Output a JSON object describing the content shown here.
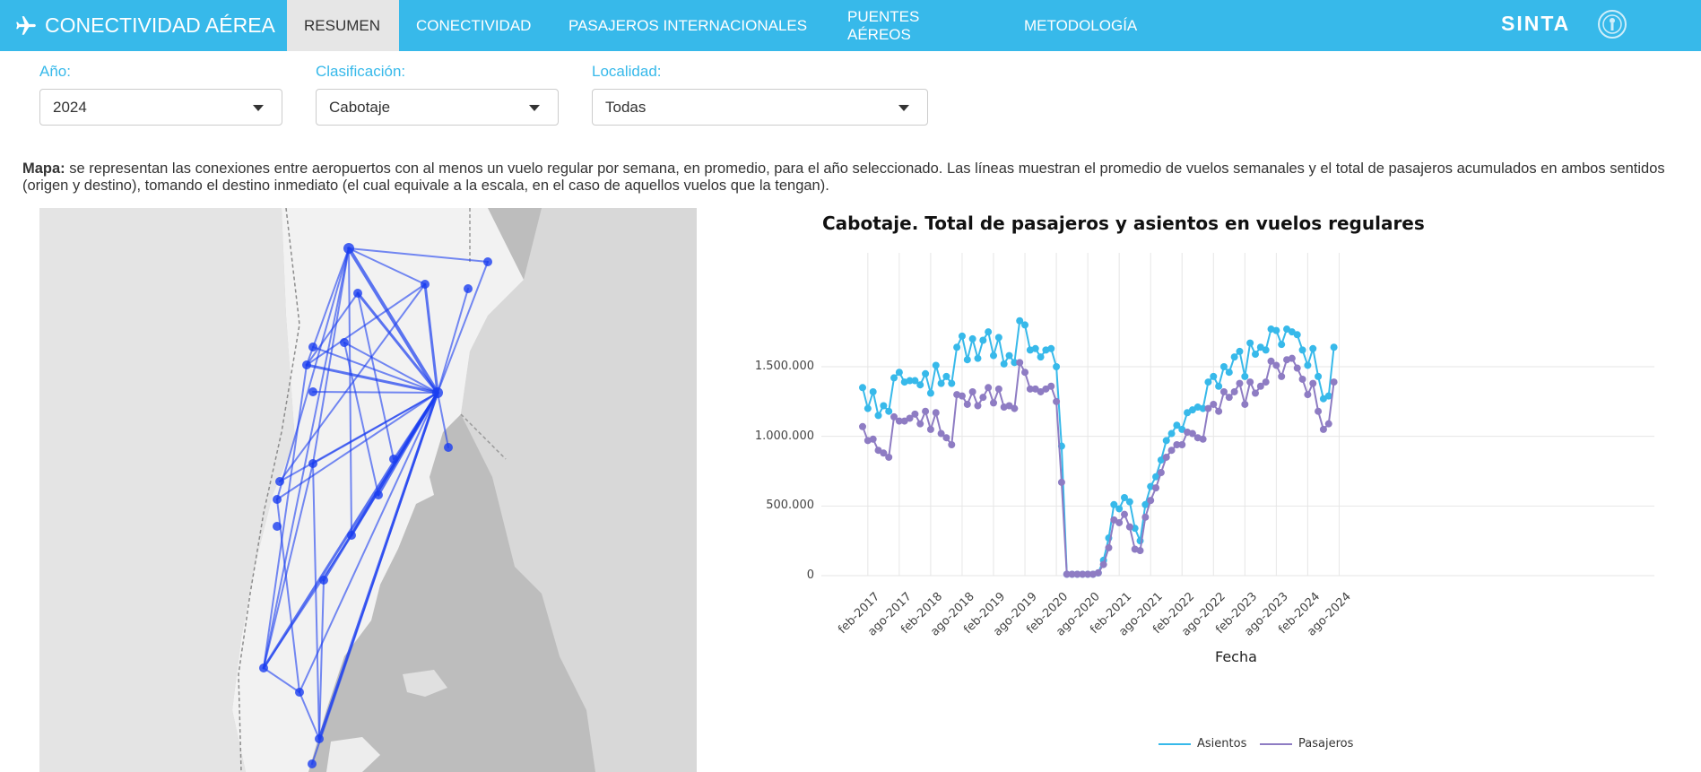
{
  "nav": {
    "brand": "CONECTIVIDAD AÉREA",
    "tabs": [
      {
        "label": "RESUMEN"
      },
      {
        "label": "CONECTIVIDAD"
      },
      {
        "label": "PASAJEROS INTERNACIONALES"
      },
      {
        "label": "PUENTES AÉREOS"
      },
      {
        "label": "METODOLOGÍA"
      }
    ],
    "sinta": "SINTA"
  },
  "filters": {
    "anio": {
      "label": "Año:",
      "value": "2024"
    },
    "clasificacion": {
      "label": "Clasificación:",
      "value": "Cabotaje"
    },
    "localidad": {
      "label": "Localidad:",
      "value": "Todas"
    }
  },
  "description": {
    "bold": "Mapa:",
    "text": " se representan las conexiones entre aeropuertos con al menos un vuelo regular por semana, en promedio, para el año seleccionado. Las líneas muestran el promedio de vuelos semanales y el total de pasajeros acumulados en ambos sentidos (origen y destino), tomando el destino inmediato (el cual equivale a la escala, en el caso de aquellos vuelos que la tengan)."
  },
  "colors": {
    "navbar": "#37b9ea",
    "asientos": "#37b9ea",
    "pasajeros": "#8e7cc3",
    "map_routes": "#1a3df0"
  },
  "chart_data": {
    "type": "line",
    "title": "Cabotaje. Total de pasajeros y asientos en vuelos regulares",
    "xlabel": "Fecha",
    "ylabel": "",
    "ylim": [
      0,
      1800000
    ],
    "y_ticks": [
      "0",
      "500.000",
      "1.000.000",
      "1.500.000"
    ],
    "y_tick_values": [
      0,
      500000,
      1000000,
      1500000
    ],
    "x_ticks": [
      "feb-2017",
      "ago-2017",
      "feb-2018",
      "ago-2018",
      "feb-2019",
      "ago-2019",
      "feb-2020",
      "ago-2020",
      "feb-2021",
      "ago-2021",
      "feb-2022",
      "ago-2022",
      "feb-2023",
      "ago-2023",
      "feb-2024",
      "ago-2024"
    ],
    "x_tick_months": [
      1,
      7,
      13,
      19,
      25,
      31,
      37,
      43,
      49,
      55,
      61,
      67,
      73,
      79,
      85,
      91
    ],
    "x_start": "ene-2017",
    "grid": true,
    "legend_position": "bottom",
    "series": [
      {
        "name": "Asientos",
        "values": [
          1350000,
          1200000,
          1320000,
          1150000,
          1220000,
          1180000,
          1420000,
          1460000,
          1390000,
          1400000,
          1400000,
          1370000,
          1450000,
          1310000,
          1510000,
          1380000,
          1430000,
          1380000,
          1640000,
          1720000,
          1550000,
          1700000,
          1560000,
          1690000,
          1750000,
          1580000,
          1710000,
          1520000,
          1580000,
          1530000,
          1830000,
          1800000,
          1620000,
          1630000,
          1570000,
          1620000,
          1630000,
          1500000,
          930000,
          10000,
          10000,
          10000,
          10000,
          10000,
          10000,
          20000,
          110000,
          270000,
          510000,
          480000,
          560000,
          530000,
          340000,
          250000,
          510000,
          640000,
          710000,
          830000,
          970000,
          1020000,
          1080000,
          1050000,
          1170000,
          1190000,
          1210000,
          1200000,
          1390000,
          1430000,
          1360000,
          1500000,
          1460000,
          1570000,
          1610000,
          1430000,
          1670000,
          1590000,
          1640000,
          1620000,
          1770000,
          1760000,
          1660000,
          1770000,
          1750000,
          1730000,
          1620000,
          1510000,
          1630000,
          1430000,
          1270000,
          1290000,
          1640000
        ]
      },
      {
        "name": "Pasajeros",
        "values": [
          1070000,
          970000,
          980000,
          900000,
          880000,
          850000,
          1140000,
          1110000,
          1110000,
          1130000,
          1160000,
          1090000,
          1180000,
          1050000,
          1170000,
          1020000,
          990000,
          940000,
          1300000,
          1290000,
          1230000,
          1320000,
          1220000,
          1280000,
          1350000,
          1240000,
          1340000,
          1210000,
          1220000,
          1200000,
          1530000,
          1460000,
          1340000,
          1340000,
          1320000,
          1340000,
          1360000,
          1250000,
          670000,
          10000,
          10000,
          10000,
          10000,
          10000,
          10000,
          20000,
          80000,
          200000,
          400000,
          380000,
          440000,
          350000,
          190000,
          180000,
          420000,
          540000,
          630000,
          740000,
          850000,
          900000,
          940000,
          940000,
          1030000,
          1020000,
          990000,
          980000,
          1200000,
          1230000,
          1180000,
          1320000,
          1280000,
          1320000,
          1380000,
          1230000,
          1390000,
          1310000,
          1360000,
          1390000,
          1540000,
          1510000,
          1430000,
          1550000,
          1560000,
          1490000,
          1410000,
          1300000,
          1380000,
          1180000,
          1050000,
          1090000,
          1390000
        ]
      }
    ]
  }
}
